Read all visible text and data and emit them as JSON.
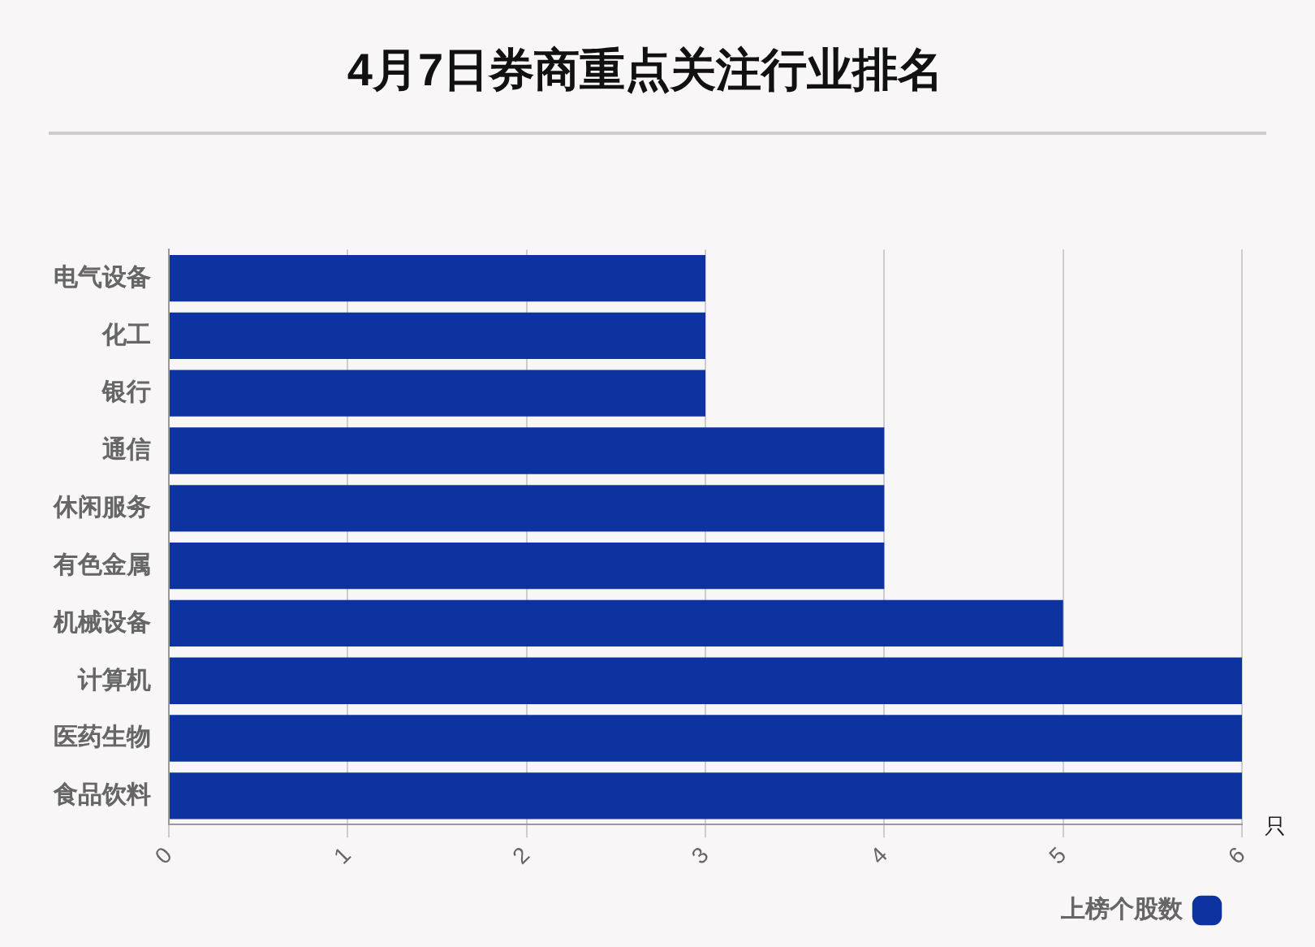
{
  "chart_data": {
    "type": "bar",
    "orientation": "horizontal",
    "title": "4月7日券商重点关注行业排名",
    "xlabel": "只",
    "categories": [
      "电气设备",
      "化工",
      "银行",
      "通信",
      "休闲服务",
      "有色金属",
      "机械设备",
      "计算机",
      "医药生物",
      "食品饮料"
    ],
    "series": [
      {
        "name": "上榜个股数",
        "color": "#0d33a0",
        "values": [
          3,
          3,
          3,
          4,
          4,
          4,
          5,
          6,
          6,
          6
        ]
      }
    ],
    "xlim": [
      0,
      6
    ],
    "xticks": [
      0,
      1,
      2,
      3,
      4,
      5,
      6
    ],
    "grid": "x",
    "legend": "bottom right"
  }
}
